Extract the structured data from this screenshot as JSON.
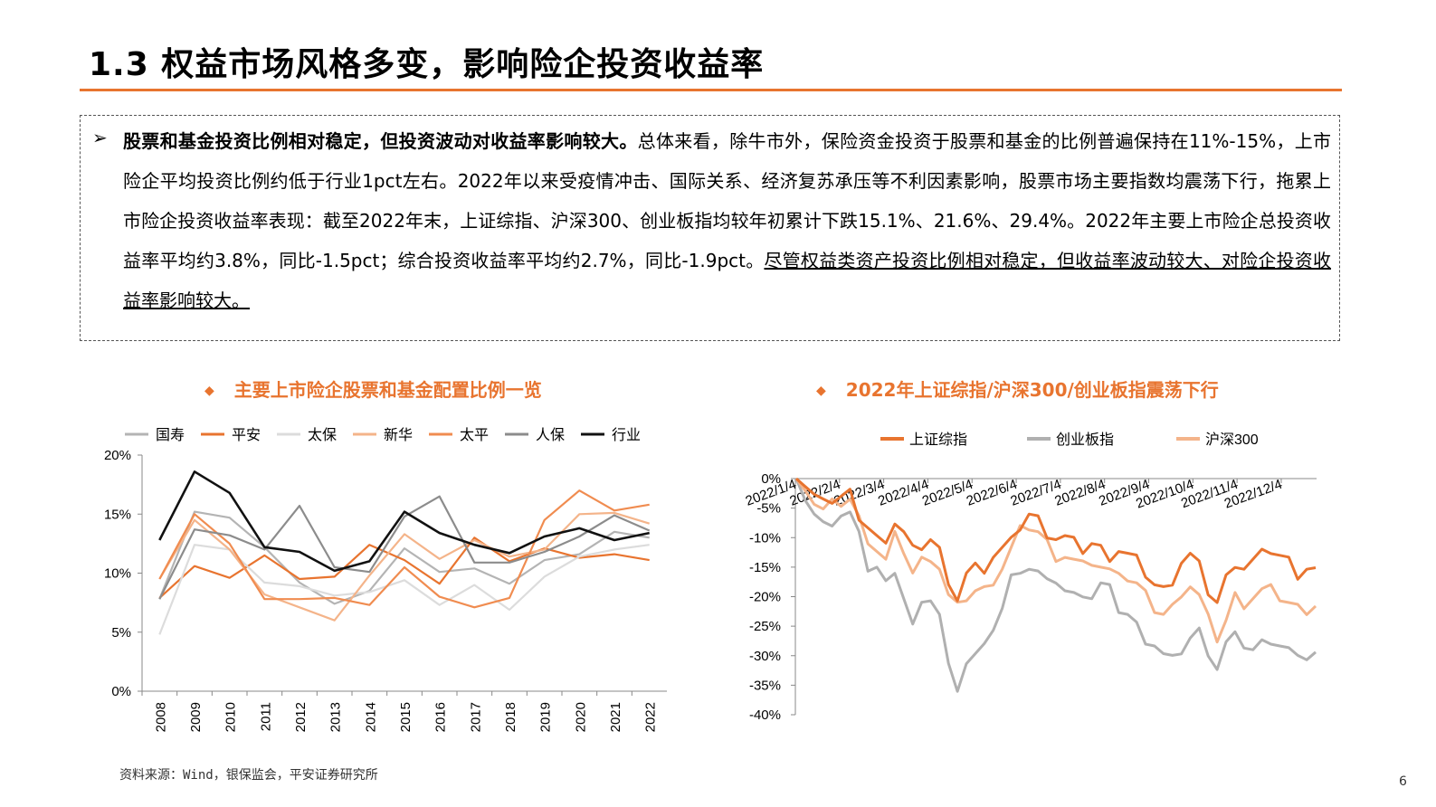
{
  "header": {
    "title": "1.3 权益市场风格多变，影响险企投资收益率"
  },
  "summary": {
    "bold_lead": "股票和基金投资比例相对稳定，但投资波动对收益率影响较大。",
    "body": "总体来看，除牛市外，保险资金投资于股票和基金的比例普遍保持在11%-15%，上市险企平均投资比例约低于行业1pct左右。2022年以来受疫情冲击、国际关系、经济复苏承压等不利因素影响，股票市场主要指数均震荡下行，拖累上市险企投资收益率表现：截至2022年末，上证综指、沪深300、创业板指均较年初累计下跌15.1%、21.6%、29.4%。2022年主要上市险企总投资收益率平均约3.8%，同比-1.5pct；综合投资收益率平均约2.7%，同比-1.9pct。",
    "underlined_tail": "尽管权益类资产投资比例相对稳定，但收益率波动较大、对险企投资收益率影响较大。"
  },
  "footer": {
    "source": "资料来源：Wind，银保监会，平安证券研究所",
    "page_number": "6"
  },
  "chart_data": [
    {
      "type": "line",
      "title": "主要上市险企股票和基金配置比例一览",
      "categories": [
        "2008",
        "2009",
        "2010",
        "2011",
        "2012",
        "2013",
        "2014",
        "2015",
        "2016",
        "2017",
        "2018",
        "2019",
        "2020",
        "2021",
        "2022"
      ],
      "ylim": [
        0,
        20
      ],
      "yticks": [
        "0%",
        "5%",
        "10%",
        "15%",
        "20%"
      ],
      "series": [
        {
          "name": "国寿",
          "color": "#b4b4b4",
          "values": [
            7.8,
            15.2,
            14.7,
            12.2,
            9.2,
            7.4,
            8.5,
            12.1,
            10.1,
            10.4,
            9.1,
            11.1,
            11.6,
            13.5,
            13.0
          ]
        },
        {
          "name": "平安",
          "color": "#e8742f",
          "values": [
            7.9,
            10.6,
            9.6,
            11.5,
            9.5,
            9.7,
            12.4,
            11.1,
            9.1,
            13.0,
            11.0,
            12.1,
            11.3,
            11.6,
            11.1
          ]
        },
        {
          "name": "太保",
          "color": "#dcdcdc",
          "values": [
            4.8,
            12.4,
            12.0,
            9.2,
            8.9,
            8.1,
            8.4,
            9.4,
            7.3,
            9.0,
            6.9,
            9.7,
            11.4,
            12.0,
            12.4
          ]
        },
        {
          "name": "新华",
          "color": "#f4b48a",
          "values": [
            9.5,
            14.5,
            12.0,
            8.2,
            7.1,
            6.0,
            9.8,
            13.3,
            11.2,
            12.8,
            11.4,
            12.0,
            15.0,
            15.1,
            14.2
          ]
        },
        {
          "name": "太平",
          "color": "#f08c50",
          "values": [
            9.5,
            15.0,
            12.5,
            7.8,
            7.8,
            7.9,
            7.3,
            10.5,
            8.0,
            7.1,
            7.9,
            14.5,
            17.0,
            15.3,
            15.8
          ]
        },
        {
          "name": "人保",
          "color": "#8c8c8c",
          "values": [
            7.8,
            13.7,
            13.2,
            12.0,
            15.7,
            10.5,
            10.1,
            14.8,
            16.5,
            10.9,
            10.9,
            11.8,
            13.1,
            14.9,
            13.6
          ]
        },
        {
          "name": "行业",
          "color": "#111111",
          "values": [
            12.8,
            18.6,
            16.8,
            12.2,
            11.8,
            10.2,
            11.0,
            15.2,
            13.4,
            12.4,
            11.7,
            13.1,
            13.8,
            12.8,
            13.4
          ]
        }
      ]
    },
    {
      "type": "line",
      "title": "2022年上证综指/沪深300/创业板指震荡下行",
      "x_labels": [
        "2022/1/4",
        "2022/2/4",
        "2022/3/4",
        "2022/4/4",
        "2022/5/4",
        "2022/6/4",
        "2022/7/4",
        "2022/8/4",
        "2022/9/4",
        "2022/10/4",
        "2022/11/4",
        "2022/12/4"
      ],
      "ylim": [
        -40,
        0
      ],
      "yticks": [
        "0%",
        "-5%",
        "-10%",
        "-15%",
        "-20%",
        "-25%",
        "-30%",
        "-35%",
        "-40%"
      ],
      "series": [
        {
          "name": "上证综指",
          "color": "#e8742f",
          "width": 3,
          "values": [
            0,
            -1,
            -3,
            -4.5,
            -3.5,
            -3,
            -2.5,
            -6,
            -8,
            -10,
            -12,
            -7,
            -9,
            -12,
            -11,
            -10,
            -12,
            -19,
            -20,
            -16,
            -15,
            -15,
            -13,
            -12,
            -11,
            -8,
            -6,
            -7,
            -9,
            -10,
            -10,
            -11,
            -12,
            -11,
            -12,
            -13,
            -12,
            -13,
            -14,
            -16,
            -18,
            -19,
            -17,
            -14,
            -13,
            -15,
            -19,
            -21,
            -17,
            -14,
            -15,
            -14,
            -13,
            -12,
            -13,
            -14,
            -16,
            -15,
            -15.1
          ]
        },
        {
          "name": "创业板指",
          "color": "#b0b0b0",
          "width": 3,
          "values": [
            0,
            -3,
            -6,
            -8,
            -7,
            -6,
            -6,
            -10,
            -15,
            -15,
            -18,
            -15,
            -20,
            -25,
            -22,
            -20,
            -23,
            -32,
            -35,
            -31,
            -30,
            -29,
            -25,
            -22,
            -17,
            -15,
            -15,
            -16,
            -18,
            -17,
            -19,
            -20,
            -19,
            -20,
            -18,
            -19,
            -22,
            -23,
            -25,
            -27,
            -28,
            -30,
            -31,
            -29,
            -27,
            -26,
            -29,
            -32,
            -28,
            -27,
            -28,
            -29,
            -28,
            -27,
            -28,
            -29,
            -31,
            -30,
            -29.4
          ]
        },
        {
          "name": "沪深300",
          "color": "#f4b48a",
          "width": 3,
          "values": [
            0,
            -1,
            -4,
            -5.5,
            -4.5,
            -4,
            -3.5,
            -7,
            -10,
            -12,
            -14,
            -10,
            -12,
            -16,
            -14,
            -13,
            -15,
            -20,
            -22,
            -20,
            -19,
            -19,
            -17,
            -15,
            -12,
            -9,
            -8,
            -9,
            -11,
            -13,
            -13,
            -14,
            -15,
            -14,
            -15,
            -16,
            -15,
            -17,
            -18,
            -20,
            -22,
            -23,
            -22,
            -19,
            -18,
            -20,
            -24,
            -27,
            -24,
            -20,
            -21,
            -20,
            -19,
            -19,
            -20,
            -21,
            -22,
            -22,
            -21.6
          ]
        }
      ]
    }
  ]
}
